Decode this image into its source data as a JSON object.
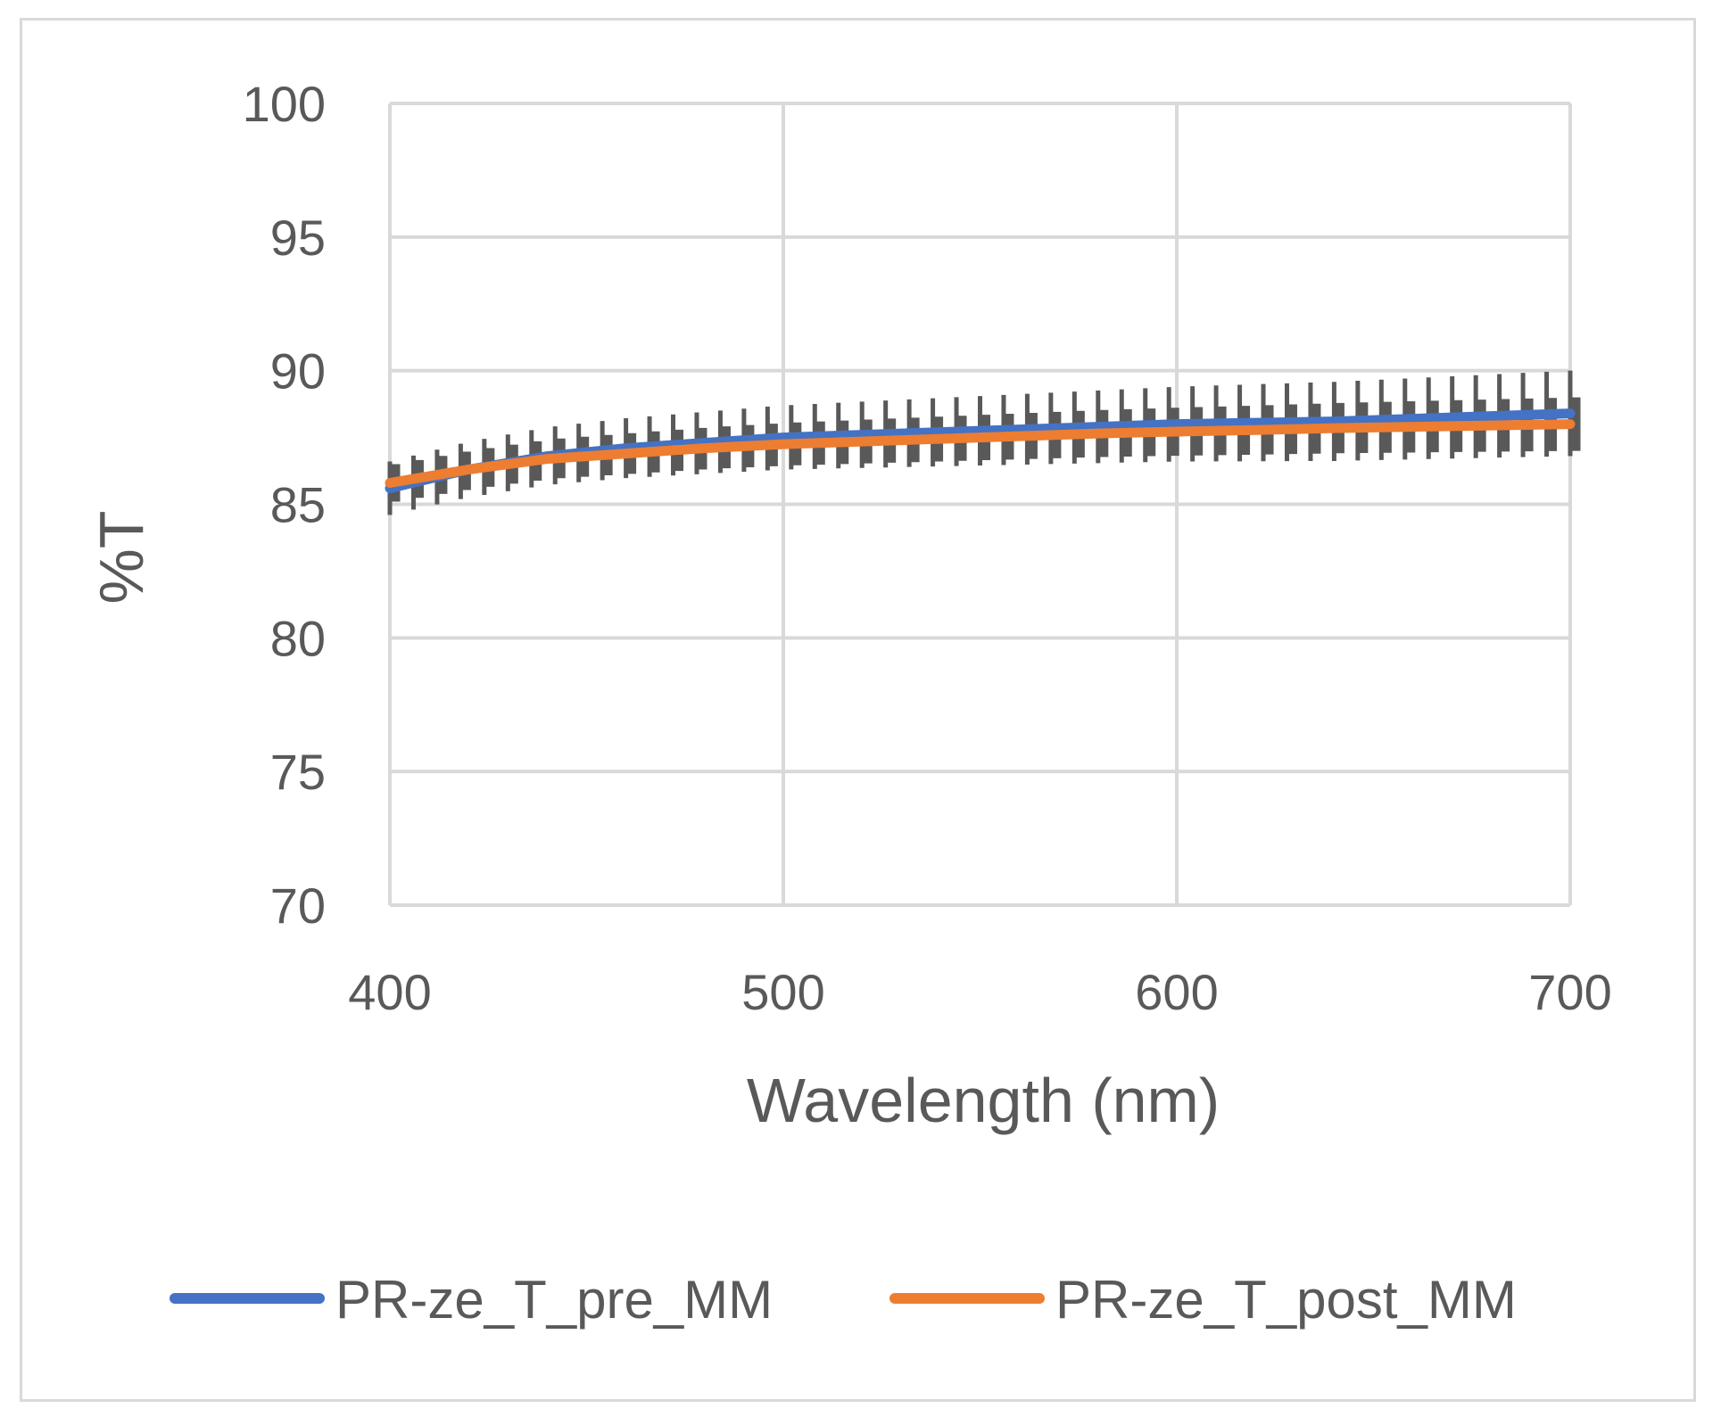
{
  "chart_data": {
    "type": "line",
    "title": "",
    "xlabel": "Wavelength (nm)",
    "ylabel": "%T",
    "xlim": [
      400,
      700
    ],
    "ylim": [
      70,
      100
    ],
    "x_ticks": [
      "400",
      "500",
      "600",
      "700"
    ],
    "y_ticks": [
      "70",
      "75",
      "80",
      "85",
      "90",
      "95",
      "100"
    ],
    "grid": true,
    "legend_position": "bottom",
    "error_bars": {
      "color": "#595959",
      "spacing_nm": 6,
      "series_pre_halfwidth_at_400": 1.0,
      "series_pre_halfwidth_at_700": 1.6,
      "series_post_halfwidth_at_400": 0.4,
      "series_post_halfwidth_at_700": 0.7
    },
    "series": [
      {
        "name": "PR-ze_T_pre_MM",
        "color": "#4472c4",
        "x": [
          400,
          420,
          440,
          460,
          480,
          500,
          520,
          540,
          560,
          580,
          600,
          620,
          640,
          660,
          680,
          700
        ],
        "values": [
          85.6,
          86.3,
          86.8,
          87.1,
          87.3,
          87.5,
          87.6,
          87.7,
          87.8,
          87.9,
          88.0,
          88.05,
          88.1,
          88.2,
          88.3,
          88.4
        ]
      },
      {
        "name": "PR-ze_T_post_MM",
        "color": "#ed7d31",
        "x": [
          400,
          420,
          440,
          460,
          480,
          500,
          520,
          540,
          560,
          580,
          600,
          620,
          640,
          660,
          680,
          700
        ],
        "values": [
          85.8,
          86.3,
          86.7,
          86.9,
          87.1,
          87.25,
          87.35,
          87.45,
          87.55,
          87.65,
          87.72,
          87.78,
          87.85,
          87.9,
          87.95,
          88.0
        ]
      }
    ]
  }
}
